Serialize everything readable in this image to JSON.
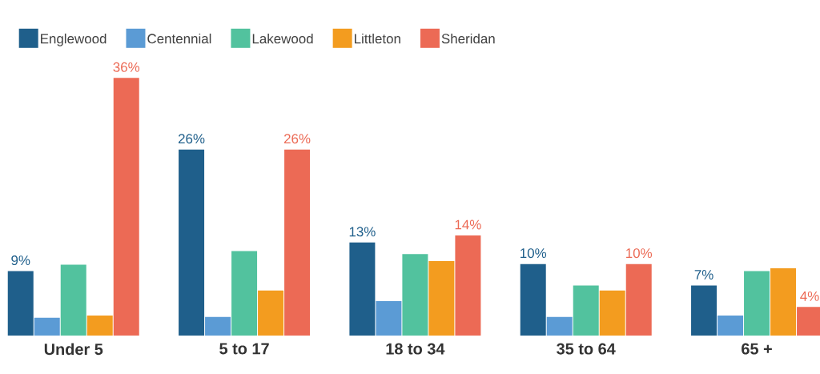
{
  "chart_data": {
    "type": "bar",
    "categories": [
      "Under 5",
      "5 to 17",
      "18 to 34",
      "35 to 64",
      "65 +"
    ],
    "series": [
      {
        "name": "Englewood",
        "color": "#1f5f8b",
        "values": [
          9,
          26,
          13,
          10,
          7
        ],
        "value_labels": [
          "9%",
          "26%",
          "13%",
          "10%",
          "7%"
        ]
      },
      {
        "name": "Centennial",
        "color": "#5b9bd5",
        "values": [
          2.5,
          2.6,
          4.8,
          2.6,
          2.8
        ]
      },
      {
        "name": "Lakewood",
        "color": "#52c29e",
        "values": [
          9.9,
          11.8,
          11.4,
          7.0,
          9.0
        ]
      },
      {
        "name": "Littleton",
        "color": "#f39c1f",
        "values": [
          2.8,
          6.3,
          10.4,
          6.3,
          9.4
        ]
      },
      {
        "name": "Sheridan",
        "color": "#ec6a55",
        "values": [
          36,
          26,
          14,
          10,
          4
        ],
        "value_labels": [
          "36%",
          "26%",
          "14%",
          "10%",
          "4%"
        ]
      }
    ],
    "legend": "top"
  }
}
